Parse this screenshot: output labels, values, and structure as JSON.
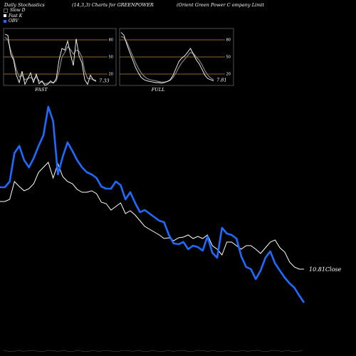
{
  "header": {
    "left": "Daily Stochastics",
    "middle": "(14,3,3) Charts for GREENPOWER",
    "right": "(Orient Green Power C                         ompany Limit"
  },
  "legend": [
    {
      "label": "Slow D",
      "color": "#000000"
    },
    {
      "label": "Fast K",
      "color": "#ffffff"
    },
    {
      "label": "OBV",
      "color": "#1e6bff"
    }
  ],
  "colors": {
    "obv": "#1e6bff",
    "close": "#ffffff",
    "stoch_d": "#777777",
    "stoch_k": "#ffffff",
    "level": "#b8862b"
  },
  "chart_data": [
    {
      "type": "line",
      "title": "FAST",
      "levels": [
        80,
        50,
        20
      ],
      "ylim": [
        0,
        100
      ],
      "end_value": "7.33",
      "series": [
        {
          "name": "Fast K",
          "values": [
            90,
            88,
            55,
            45,
            18,
            5,
            25,
            2,
            12,
            22,
            5,
            20,
            3,
            8,
            0,
            2,
            8,
            4,
            12,
            45,
            65,
            62,
            78,
            55,
            35,
            82,
            52,
            40,
            10,
            2,
            18,
            10,
            7
          ]
        },
        {
          "name": "Slow D",
          "values": [
            85,
            80,
            62,
            48,
            28,
            15,
            18,
            10,
            12,
            14,
            10,
            15,
            8,
            6,
            3,
            4,
            5,
            5,
            8,
            25,
            50,
            58,
            68,
            63,
            55,
            62,
            60,
            50,
            25,
            12,
            12,
            10,
            9
          ]
        }
      ]
    },
    {
      "type": "line",
      "title": "FULL",
      "levels": [
        80,
        50,
        20
      ],
      "ylim": [
        0,
        100
      ],
      "end_value": "7.81",
      "series": [
        {
          "name": "Fast K",
          "values": [
            93,
            88,
            72,
            58,
            45,
            32,
            22,
            14,
            10,
            8,
            7,
            6,
            5,
            5,
            4,
            5,
            7,
            10,
            18,
            30,
            42,
            48,
            52,
            58,
            65,
            55,
            45,
            38,
            28,
            18,
            12,
            10,
            8
          ]
        },
        {
          "name": "Slow D",
          "values": [
            86,
            84,
            76,
            64,
            52,
            40,
            30,
            22,
            16,
            12,
            10,
            9,
            8,
            7,
            6,
            6,
            7,
            9,
            14,
            22,
            32,
            40,
            46,
            52,
            58,
            56,
            50,
            44,
            36,
            26,
            18,
            13,
            10
          ]
        }
      ]
    },
    {
      "type": "line",
      "close_label": "10.81Close",
      "series": [
        {
          "name": "OBV",
          "values": [
            263,
            263,
            255,
            215,
            205,
            225,
            235,
            222,
            205,
            190,
            150,
            170,
            245,
            220,
            200,
            212,
            225,
            235,
            242,
            245,
            250,
            262,
            265,
            265,
            255,
            260,
            280,
            270,
            285,
            298,
            295,
            300,
            305,
            310,
            312,
            330,
            342,
            343,
            340,
            350,
            345,
            347,
            352,
            332,
            355,
            362,
            320,
            328,
            330,
            335,
            360,
            375,
            378,
            392,
            380,
            362,
            353,
            370,
            380,
            390,
            398,
            404,
            415,
            425
          ]
        },
        {
          "name": "Close",
          "values": [
            283,
            283,
            280,
            255,
            262,
            268,
            265,
            258,
            242,
            235,
            228,
            250,
            230,
            248,
            255,
            258,
            266,
            270,
            270,
            268,
            272,
            284,
            286,
            295,
            290,
            285,
            300,
            296,
            302,
            310,
            318,
            322,
            326,
            330,
            335,
            334,
            338,
            334,
            333,
            330,
            335,
            332,
            335,
            330,
            345,
            350,
            358,
            340,
            340,
            345,
            350,
            345,
            345,
            350,
            356,
            348,
            340,
            337,
            348,
            354,
            368,
            375,
            378,
            378
          ]
        }
      ]
    }
  ]
}
